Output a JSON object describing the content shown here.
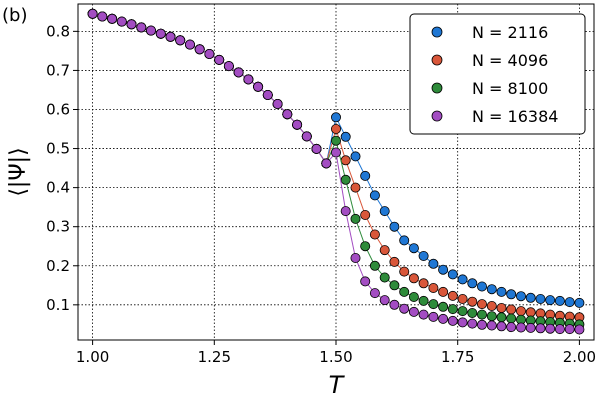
{
  "chart_data": {
    "type": "scatter",
    "panel_label": "(b)",
    "xlabel": "T",
    "ylabel": "⟨|Ψ|⟩",
    "xlim": [
      0.97,
      2.03
    ],
    "ylim": [
      0.01,
      0.87
    ],
    "xticks": [
      1.0,
      1.25,
      1.5,
      1.75,
      2.0
    ],
    "xtick_labels": [
      "1.00",
      "1.25",
      "1.50",
      "1.75",
      "2.00"
    ],
    "yticks": [
      0.1,
      0.2,
      0.3,
      0.4,
      0.5,
      0.6,
      0.7,
      0.8
    ],
    "ytick_labels": [
      "0.1",
      "0.2",
      "0.3",
      "0.4",
      "0.5",
      "0.6",
      "0.7",
      "0.8"
    ],
    "grid": true,
    "legend_position": "top-right",
    "x": [
      1.0,
      1.02,
      1.04,
      1.06,
      1.08,
      1.1,
      1.12,
      1.14,
      1.16,
      1.18,
      1.2,
      1.22,
      1.24,
      1.26,
      1.28,
      1.3,
      1.32,
      1.34,
      1.36,
      1.38,
      1.4,
      1.42,
      1.44,
      1.46,
      1.48,
      1.5,
      1.52,
      1.54,
      1.56,
      1.58,
      1.6,
      1.62,
      1.64,
      1.66,
      1.68,
      1.7,
      1.72,
      1.74,
      1.76,
      1.78,
      1.8,
      1.82,
      1.84,
      1.86,
      1.88,
      1.9,
      1.92,
      1.94,
      1.96,
      1.98,
      2.0
    ],
    "series": [
      {
        "name": "N = 2116",
        "color": "#1f77d4",
        "values": [
          0.845,
          0.838,
          0.832,
          0.825,
          0.818,
          0.81,
          0.802,
          0.794,
          0.786,
          0.777,
          0.766,
          0.754,
          0.742,
          0.727,
          0.711,
          0.695,
          0.677,
          0.658,
          0.637,
          0.614,
          0.588,
          0.561,
          0.531,
          0.499,
          0.462,
          0.58,
          0.53,
          0.48,
          0.43,
          0.38,
          0.34,
          0.3,
          0.265,
          0.245,
          0.225,
          0.205,
          0.19,
          0.178,
          0.165,
          0.155,
          0.147,
          0.14,
          0.133,
          0.127,
          0.122,
          0.118,
          0.115,
          0.112,
          0.11,
          0.107,
          0.105
        ]
      },
      {
        "name": "N = 4096",
        "color": "#d9573a",
        "values": [
          0.845,
          0.838,
          0.832,
          0.825,
          0.818,
          0.81,
          0.802,
          0.794,
          0.786,
          0.777,
          0.766,
          0.754,
          0.742,
          0.727,
          0.711,
          0.695,
          0.677,
          0.658,
          0.637,
          0.614,
          0.588,
          0.561,
          0.531,
          0.499,
          0.462,
          0.55,
          0.47,
          0.4,
          0.33,
          0.28,
          0.24,
          0.21,
          0.185,
          0.168,
          0.155,
          0.143,
          0.133,
          0.123,
          0.115,
          0.108,
          0.102,
          0.097,
          0.092,
          0.088,
          0.084,
          0.081,
          0.078,
          0.075,
          0.072,
          0.07,
          0.068
        ]
      },
      {
        "name": "N = 8100",
        "color": "#2e8b3a",
        "values": [
          0.845,
          0.838,
          0.832,
          0.825,
          0.818,
          0.81,
          0.802,
          0.794,
          0.786,
          0.777,
          0.766,
          0.754,
          0.742,
          0.727,
          0.711,
          0.695,
          0.677,
          0.658,
          0.637,
          0.614,
          0.588,
          0.561,
          0.531,
          0.499,
          0.462,
          0.52,
          0.42,
          0.32,
          0.25,
          0.2,
          0.17,
          0.15,
          0.133,
          0.12,
          0.11,
          0.102,
          0.095,
          0.089,
          0.084,
          0.079,
          0.075,
          0.071,
          0.068,
          0.065,
          0.062,
          0.06,
          0.058,
          0.056,
          0.054,
          0.052,
          0.05
        ]
      },
      {
        "name": "N = 16384",
        "color": "#a34dc2",
        "values": [
          0.845,
          0.838,
          0.832,
          0.825,
          0.818,
          0.81,
          0.802,
          0.794,
          0.786,
          0.777,
          0.766,
          0.754,
          0.742,
          0.727,
          0.711,
          0.695,
          0.677,
          0.658,
          0.637,
          0.614,
          0.588,
          0.561,
          0.531,
          0.499,
          0.462,
          0.49,
          0.34,
          0.22,
          0.16,
          0.13,
          0.112,
          0.1,
          0.09,
          0.082,
          0.075,
          0.069,
          0.064,
          0.059,
          0.055,
          0.052,
          0.049,
          0.047,
          0.045,
          0.043,
          0.042,
          0.041,
          0.04,
          0.039,
          0.038,
          0.038,
          0.037
        ]
      }
    ]
  }
}
